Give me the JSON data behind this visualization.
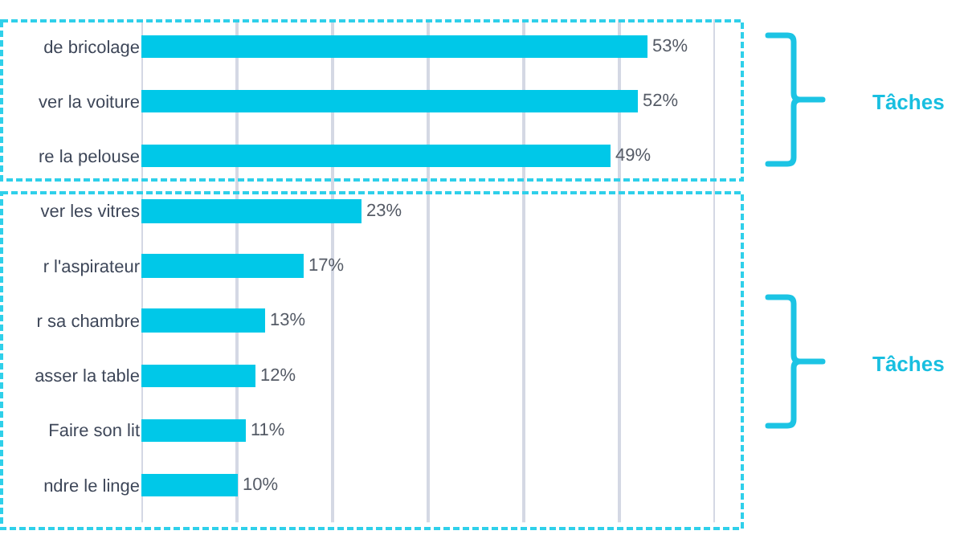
{
  "chart_data": {
    "type": "bar",
    "orientation": "horizontal",
    "categories": [
      "de bricolage",
      "ver la voiture",
      "re la pelouse",
      "ver les vitres",
      "r l'aspirateur",
      "r sa chambre",
      "asser la table",
      "Faire son lit",
      "ndre le linge"
    ],
    "values": [
      53,
      52,
      49,
      23,
      17,
      13,
      12,
      11,
      10
    ],
    "value_labels": [
      "53%",
      "52%",
      "49%",
      "23%",
      "17%",
      "13%",
      "12%",
      "11%",
      "10%"
    ],
    "color": "#00c8e8",
    "xlim": [
      0,
      60
    ],
    "xticks": [
      {
        "value": 0,
        "label": null
      },
      {
        "value": 10,
        "label": null
      },
      {
        "value": 20,
        "label": null
      },
      {
        "value": 30,
        "label": null
      },
      {
        "value": 40,
        "label": null
      },
      {
        "value": 50,
        "label": null
      },
      {
        "value": 60,
        "label": null
      }
    ],
    "grid": "x",
    "tick_labels": "y",
    "annotations": [
      "Tâches",
      "Tâches"
    ]
  }
}
